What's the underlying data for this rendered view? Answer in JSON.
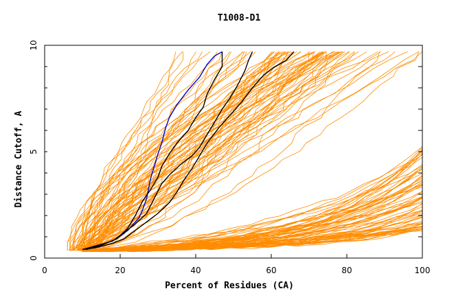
{
  "chart_data": {
    "type": "line",
    "title": "T1008-D1",
    "xlabel": "Percent of Residues (CA)",
    "ylabel": "Distance Cutoff, A",
    "xlim": [
      0,
      100
    ],
    "ylim": [
      0,
      10
    ],
    "x_ticks": [
      "0",
      "20",
      "40",
      "60",
      "80",
      "100"
    ],
    "y_ticks": [
      "0",
      "5",
      "10"
    ],
    "colors": {
      "other": "#ff8c00",
      "highlight": "#0000cc",
      "reference": "#000000"
    },
    "series": [
      {
        "color": "blue",
        "points": [
          [
            11,
            0.4
          ],
          [
            15,
            0.6
          ],
          [
            19,
            0.9
          ],
          [
            22,
            1.3
          ],
          [
            25,
            1.9
          ],
          [
            26,
            2.3
          ],
          [
            27,
            2.8
          ],
          [
            28,
            3.7
          ],
          [
            29,
            4.3
          ],
          [
            30,
            4.9
          ],
          [
            31,
            5.4
          ],
          [
            32,
            6.1
          ],
          [
            33,
            6.6
          ],
          [
            35,
            7.2
          ],
          [
            38,
            7.9
          ],
          [
            41,
            8.5
          ],
          [
            43,
            9.1
          ],
          [
            45,
            9.5
          ],
          [
            47,
            9.7
          ]
        ]
      },
      {
        "color": "black",
        "points": [
          [
            11,
            0.4
          ],
          [
            15,
            0.6
          ],
          [
            19,
            0.9
          ],
          [
            22,
            1.4
          ],
          [
            24,
            2.0
          ],
          [
            26,
            2.7
          ],
          [
            28,
            3.2
          ],
          [
            30,
            3.8
          ],
          [
            31,
            4.3
          ],
          [
            33,
            4.9
          ],
          [
            35,
            5.4
          ],
          [
            38,
            6.0
          ],
          [
            40,
            6.6
          ],
          [
            42,
            7.1
          ],
          [
            43,
            7.7
          ],
          [
            45,
            8.4
          ],
          [
            47,
            9.0
          ],
          [
            47,
            9.7
          ]
        ]
      },
      {
        "color": "black",
        "points": [
          [
            10,
            0.4
          ],
          [
            14,
            0.6
          ],
          [
            18,
            0.8
          ],
          [
            21,
            1.2
          ],
          [
            24,
            1.6
          ],
          [
            27,
            2.1
          ],
          [
            29,
            2.8
          ],
          [
            31,
            3.5
          ],
          [
            33,
            3.9
          ],
          [
            36,
            4.4
          ],
          [
            39,
            4.8
          ],
          [
            41,
            5.2
          ],
          [
            43,
            5.8
          ],
          [
            45,
            6.4
          ],
          [
            47,
            7.0
          ],
          [
            49,
            7.5
          ],
          [
            51,
            8.1
          ],
          [
            53,
            8.8
          ],
          [
            54,
            9.3
          ],
          [
            55,
            9.7
          ]
        ]
      },
      {
        "color": "black",
        "points": [
          [
            10,
            0.4
          ],
          [
            14,
            0.5
          ],
          [
            18,
            0.7
          ],
          [
            21,
            0.9
          ],
          [
            24,
            1.3
          ],
          [
            27,
            1.7
          ],
          [
            30,
            2.1
          ],
          [
            33,
            2.6
          ],
          [
            35,
            3.1
          ],
          [
            37,
            3.7
          ],
          [
            39,
            4.2
          ],
          [
            41,
            4.8
          ],
          [
            43,
            5.4
          ],
          [
            46,
            6.1
          ],
          [
            49,
            6.7
          ],
          [
            52,
            7.3
          ],
          [
            55,
            8.0
          ],
          [
            58,
            8.6
          ],
          [
            61,
            9.0
          ],
          [
            64,
            9.3
          ],
          [
            66,
            9.7
          ]
        ]
      }
    ]
  }
}
